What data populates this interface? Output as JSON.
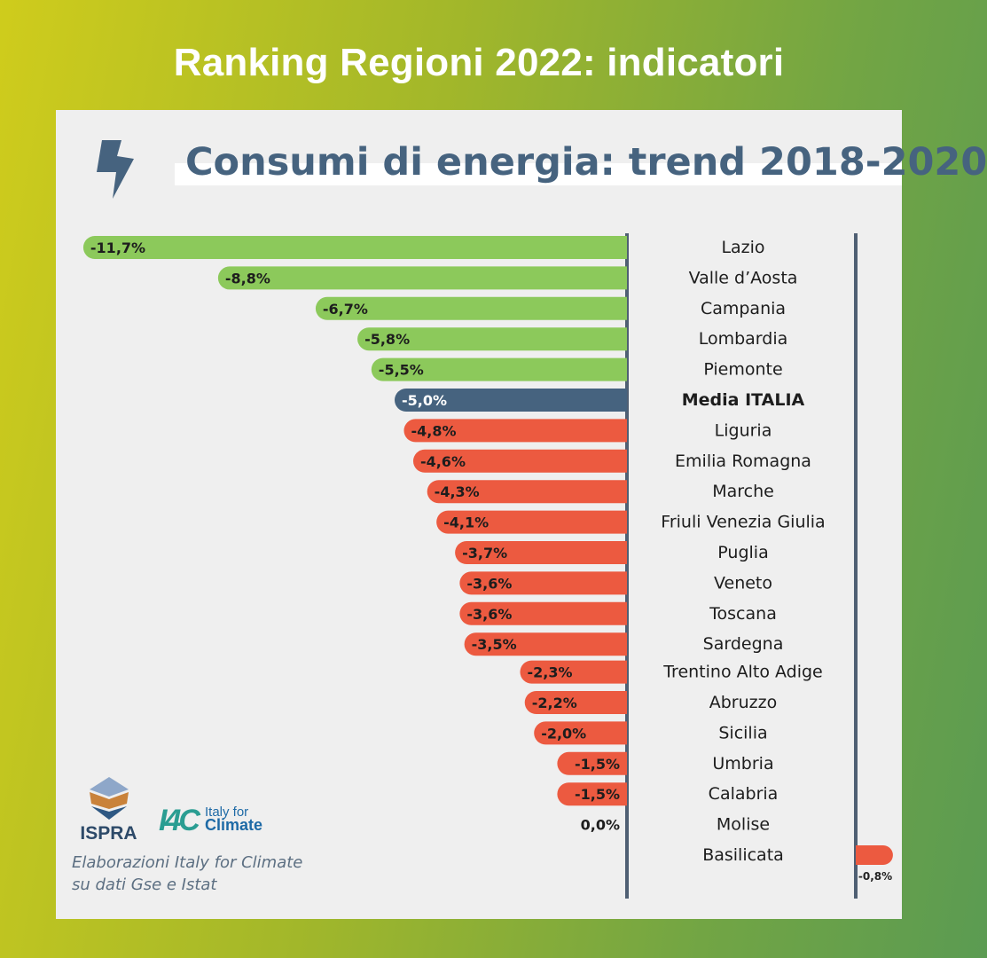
{
  "header": {
    "title": "Ranking Regioni 2022: indicatori"
  },
  "chart_title": "Consumi di energia: trend 2018-2020",
  "icons": {
    "bolt": "lightning-bolt-icon"
  },
  "logos": {
    "ispra_text": "ISPRA",
    "i4c_mark": "I4C",
    "i4c_name_line1": "Italy for",
    "i4c_name_line2": "Climate"
  },
  "source": {
    "line1": "Elaborazioni Italy for Climate",
    "line2": "su dati Gse e Istat"
  },
  "colors": {
    "background_left": "#cfcc1c",
    "background_right": "#5b9b52",
    "card": "#efefef",
    "better_than_average": "#8cc95b",
    "average": "#46637f",
    "worse_than_average": "#ec5a40",
    "axis": "#4f5f73",
    "title": "#46637f"
  },
  "chart_data": {
    "type": "bar",
    "orientation": "horizontal",
    "title": "Consumi di energia: trend 2018-2020",
    "unit": "%",
    "categories": [
      "Lazio",
      "Valle d’Aosta",
      "Campania",
      "Lombardia",
      "Piemonte",
      "Media ITALIA",
      "Liguria",
      "Emilia Romagna",
      "Marche",
      "Friuli Venezia Giulia",
      "Puglia",
      "Veneto",
      "Toscana",
      "Sardegna",
      "Trentino Alto Adige",
      "Abruzzo",
      "Sicilia",
      "Umbria",
      "Calabria",
      "Molise",
      "Basilicata"
    ],
    "values": [
      -11.7,
      -8.8,
      -6.7,
      -5.8,
      -5.5,
      -5.0,
      -4.8,
      -4.6,
      -4.3,
      -4.1,
      -3.7,
      -3.6,
      -3.6,
      -3.5,
      -2.3,
      -2.2,
      -2.0,
      -1.5,
      -1.5,
      0.0,
      -0.8
    ],
    "labels": [
      "-11,7%",
      "-8,8%",
      "-6,7%",
      "-5,8%",
      "-5,5%",
      "-5,0%",
      "-4,8%",
      "-4,6%",
      "-4,3%",
      "-4,1%",
      "-3,7%",
      "-3,6%",
      "-3,6%",
      "-3,5%",
      "-2,3%",
      "-2,2%",
      "-2,0%",
      "-1,5%",
      "-1,5%",
      "0,0%",
      "-0,8%"
    ],
    "groups": [
      "better",
      "better",
      "better",
      "better",
      "better",
      "average",
      "worse",
      "worse",
      "worse",
      "worse",
      "worse",
      "worse",
      "worse",
      "worse",
      "worse",
      "worse",
      "worse",
      "worse",
      "worse",
      "worse",
      "worse"
    ],
    "highlight_category": "Media ITALIA"
  }
}
